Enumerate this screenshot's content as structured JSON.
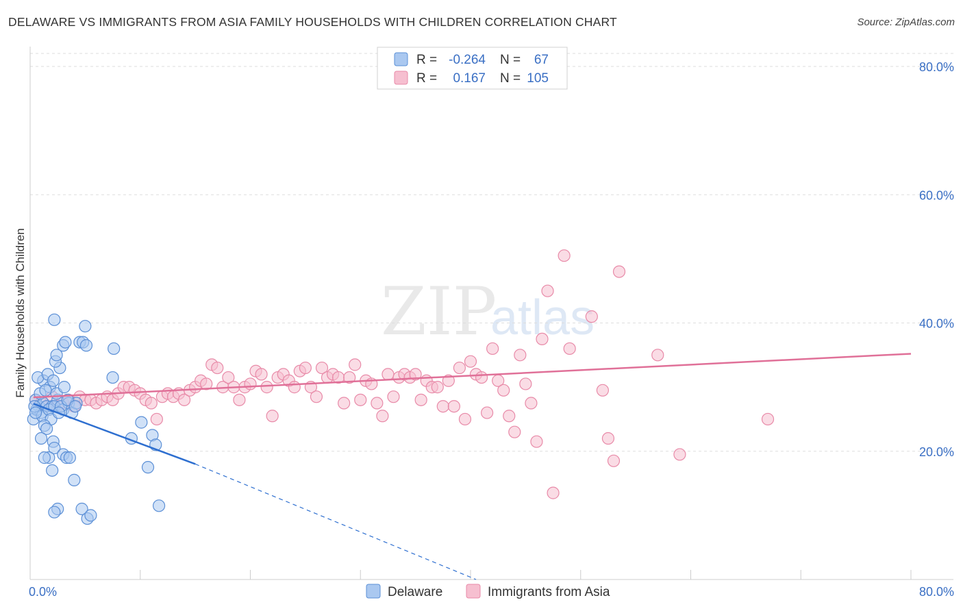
{
  "title": "DELAWARE VS IMMIGRANTS FROM ASIA FAMILY HOUSEHOLDS WITH CHILDREN CORRELATION CHART",
  "source": "Source: ZipAtlas.com",
  "watermark": {
    "zip": "ZIP",
    "atlas": "atlas"
  },
  "colors": {
    "delaware_fill": "#aac8f0",
    "delaware_stroke": "#5b8fd6",
    "delaware_line": "#2e6fd0",
    "asia_fill": "#f6bfd0",
    "asia_stroke": "#e88aa8",
    "asia_line": "#e07098",
    "axis_text": "#3a6fc4",
    "grid": "#dddddd"
  },
  "legend": {
    "row1": {
      "r_label": "R =",
      "r_value": "-0.264",
      "n_label": "N =",
      "n_value": "67"
    },
    "row2": {
      "r_label": "R =",
      "r_value": "0.167",
      "n_label": "N =",
      "n_value": "105"
    }
  },
  "bottom_legend": {
    "delaware": "Delaware",
    "asia": "Immigrants from Asia"
  },
  "chart_data": {
    "type": "scatter",
    "xlabel": "",
    "ylabel": "Family Households with Children",
    "xlim": [
      0,
      80
    ],
    "ylim": [
      0,
      82
    ],
    "x_tick_labels": [
      {
        "value": 0,
        "label": "0.0%"
      },
      {
        "value": 80,
        "label": "80.0%"
      }
    ],
    "y_tick_labels": [
      {
        "value": 20,
        "label": "20.0%"
      },
      {
        "value": 40,
        "label": "40.0%"
      },
      {
        "value": 60,
        "label": "60.0%"
      },
      {
        "value": 80,
        "label": "80.0%"
      }
    ],
    "series": [
      {
        "name": "Delaware",
        "r": -0.264,
        "n": 67,
        "trend": {
          "solid": [
            [
              0.3,
              27.4
            ],
            [
              15,
              18
            ]
          ],
          "dashed": [
            [
              15,
              18
            ],
            [
              40.5,
              0
            ]
          ]
        },
        "points": [
          [
            0.5,
            28
          ],
          [
            0.8,
            27
          ],
          [
            1,
            26
          ],
          [
            1.2,
            27.5
          ],
          [
            0.3,
            25
          ],
          [
            0.6,
            26.5
          ],
          [
            1.5,
            27
          ],
          [
            0.9,
            29
          ],
          [
            0.4,
            27
          ],
          [
            1.1,
            25.5
          ],
          [
            2,
            27
          ],
          [
            2.5,
            28
          ],
          [
            1.7,
            26.5
          ],
          [
            2.2,
            27
          ],
          [
            3,
            26.5
          ],
          [
            3.5,
            27.5
          ],
          [
            3.8,
            26
          ],
          [
            4.2,
            27.5
          ],
          [
            2.8,
            27
          ],
          [
            1.9,
            25
          ],
          [
            1.2,
            31
          ],
          [
            0.7,
            31.5
          ],
          [
            1.6,
            32
          ],
          [
            1.8,
            30
          ],
          [
            2.1,
            31
          ],
          [
            2.4,
            29
          ],
          [
            1.4,
            29.5
          ],
          [
            2.7,
            33
          ],
          [
            2.3,
            34
          ],
          [
            2.4,
            35
          ],
          [
            3.1,
            30
          ],
          [
            3,
            36.5
          ],
          [
            4.5,
            37
          ],
          [
            4.8,
            37
          ],
          [
            5.1,
            36.5
          ],
          [
            5,
            39.5
          ],
          [
            2.2,
            40.5
          ],
          [
            3.2,
            37
          ],
          [
            7.6,
            36
          ],
          [
            7.5,
            31.5
          ],
          [
            1.3,
            24
          ],
          [
            1.5,
            23.5
          ],
          [
            2.1,
            21.5
          ],
          [
            2.2,
            20.5
          ],
          [
            1.7,
            19
          ],
          [
            1.3,
            19
          ],
          [
            3,
            19.5
          ],
          [
            3.3,
            19
          ],
          [
            3.6,
            19
          ],
          [
            2,
            17
          ],
          [
            4,
            15.5
          ],
          [
            2.5,
            11
          ],
          [
            2.2,
            10.5
          ],
          [
            4.7,
            11
          ],
          [
            5.2,
            9.5
          ],
          [
            5.5,
            10
          ],
          [
            9.2,
            22
          ],
          [
            10.1,
            24.5
          ],
          [
            11.1,
            22.5
          ],
          [
            11.4,
            21
          ],
          [
            10.7,
            17.5
          ],
          [
            11.7,
            11.5
          ],
          [
            1,
            22
          ],
          [
            0.5,
            26
          ],
          [
            3.4,
            28
          ],
          [
            2.6,
            26
          ],
          [
            4.1,
            27
          ]
        ]
      },
      {
        "name": "Immigrants from Asia",
        "r": 0.167,
        "n": 105,
        "trend": {
          "solid": [
            [
              0.3,
              28.4
            ],
            [
              80,
              35.2
            ]
          ]
        },
        "points": [
          [
            0.5,
            28
          ],
          [
            1,
            27.5
          ],
          [
            1.5,
            27
          ],
          [
            2,
            28.5
          ],
          [
            2.5,
            27
          ],
          [
            3,
            27.5
          ],
          [
            3.5,
            28
          ],
          [
            4,
            27
          ],
          [
            4.5,
            28.5
          ],
          [
            5,
            28
          ],
          [
            5.5,
            28
          ],
          [
            6,
            27.5
          ],
          [
            6.5,
            28
          ],
          [
            7,
            28.5
          ],
          [
            7.5,
            28
          ],
          [
            8,
            29
          ],
          [
            8.5,
            30
          ],
          [
            9,
            30
          ],
          [
            9.5,
            29.5
          ],
          [
            10,
            29
          ],
          [
            10.5,
            28
          ],
          [
            11,
            27.5
          ],
          [
            11.5,
            25
          ],
          [
            12,
            28.5
          ],
          [
            12.5,
            29
          ],
          [
            13,
            28.5
          ],
          [
            13.5,
            29
          ],
          [
            14,
            28
          ],
          [
            14.5,
            29.5
          ],
          [
            15,
            30
          ],
          [
            15.5,
            31
          ],
          [
            16,
            30.5
          ],
          [
            16.5,
            33.5
          ],
          [
            17,
            33
          ],
          [
            17.5,
            30
          ],
          [
            18,
            31.5
          ],
          [
            18.5,
            30
          ],
          [
            19,
            28
          ],
          [
            19.5,
            30
          ],
          [
            20,
            30.5
          ],
          [
            20.5,
            32.5
          ],
          [
            21,
            32
          ],
          [
            21.5,
            30
          ],
          [
            22,
            25.5
          ],
          [
            22.5,
            31.5
          ],
          [
            23,
            32
          ],
          [
            23.5,
            31
          ],
          [
            24,
            30
          ],
          [
            24.5,
            32.5
          ],
          [
            25,
            33
          ],
          [
            25.5,
            30
          ],
          [
            26,
            28.5
          ],
          [
            26.5,
            33
          ],
          [
            27,
            31.5
          ],
          [
            27.5,
            32
          ],
          [
            28,
            31.5
          ],
          [
            28.5,
            27.5
          ],
          [
            29,
            31.5
          ],
          [
            29.5,
            33.5
          ],
          [
            30,
            28
          ],
          [
            30.5,
            31
          ],
          [
            31,
            30.5
          ],
          [
            31.5,
            27.5
          ],
          [
            32,
            25.5
          ],
          [
            32.5,
            32
          ],
          [
            33,
            28.5
          ],
          [
            33.5,
            31.5
          ],
          [
            34,
            32
          ],
          [
            34.5,
            31.5
          ],
          [
            35,
            32
          ],
          [
            35.5,
            28
          ],
          [
            36,
            31
          ],
          [
            36.5,
            30
          ],
          [
            37,
            30
          ],
          [
            37.5,
            27
          ],
          [
            38,
            31
          ],
          [
            38.5,
            27
          ],
          [
            39,
            33
          ],
          [
            39.5,
            25
          ],
          [
            40,
            34
          ],
          [
            40.5,
            32
          ],
          [
            41,
            31.5
          ],
          [
            41.5,
            26
          ],
          [
            42,
            36
          ],
          [
            42.5,
            31
          ],
          [
            43,
            29.5
          ],
          [
            43.5,
            25.5
          ],
          [
            44,
            23
          ],
          [
            44.5,
            35
          ],
          [
            45,
            30.5
          ],
          [
            45.5,
            27.5
          ],
          [
            46,
            21.5
          ],
          [
            46.5,
            37.5
          ],
          [
            47,
            45
          ],
          [
            47.5,
            13.5
          ],
          [
            48.5,
            50.5
          ],
          [
            49,
            36
          ],
          [
            51,
            41
          ],
          [
            52,
            29.5
          ],
          [
            52.5,
            22
          ],
          [
            53.5,
            48
          ],
          [
            53,
            18.5
          ],
          [
            57,
            35
          ],
          [
            59,
            19.5
          ],
          [
            67,
            25
          ]
        ]
      }
    ]
  }
}
